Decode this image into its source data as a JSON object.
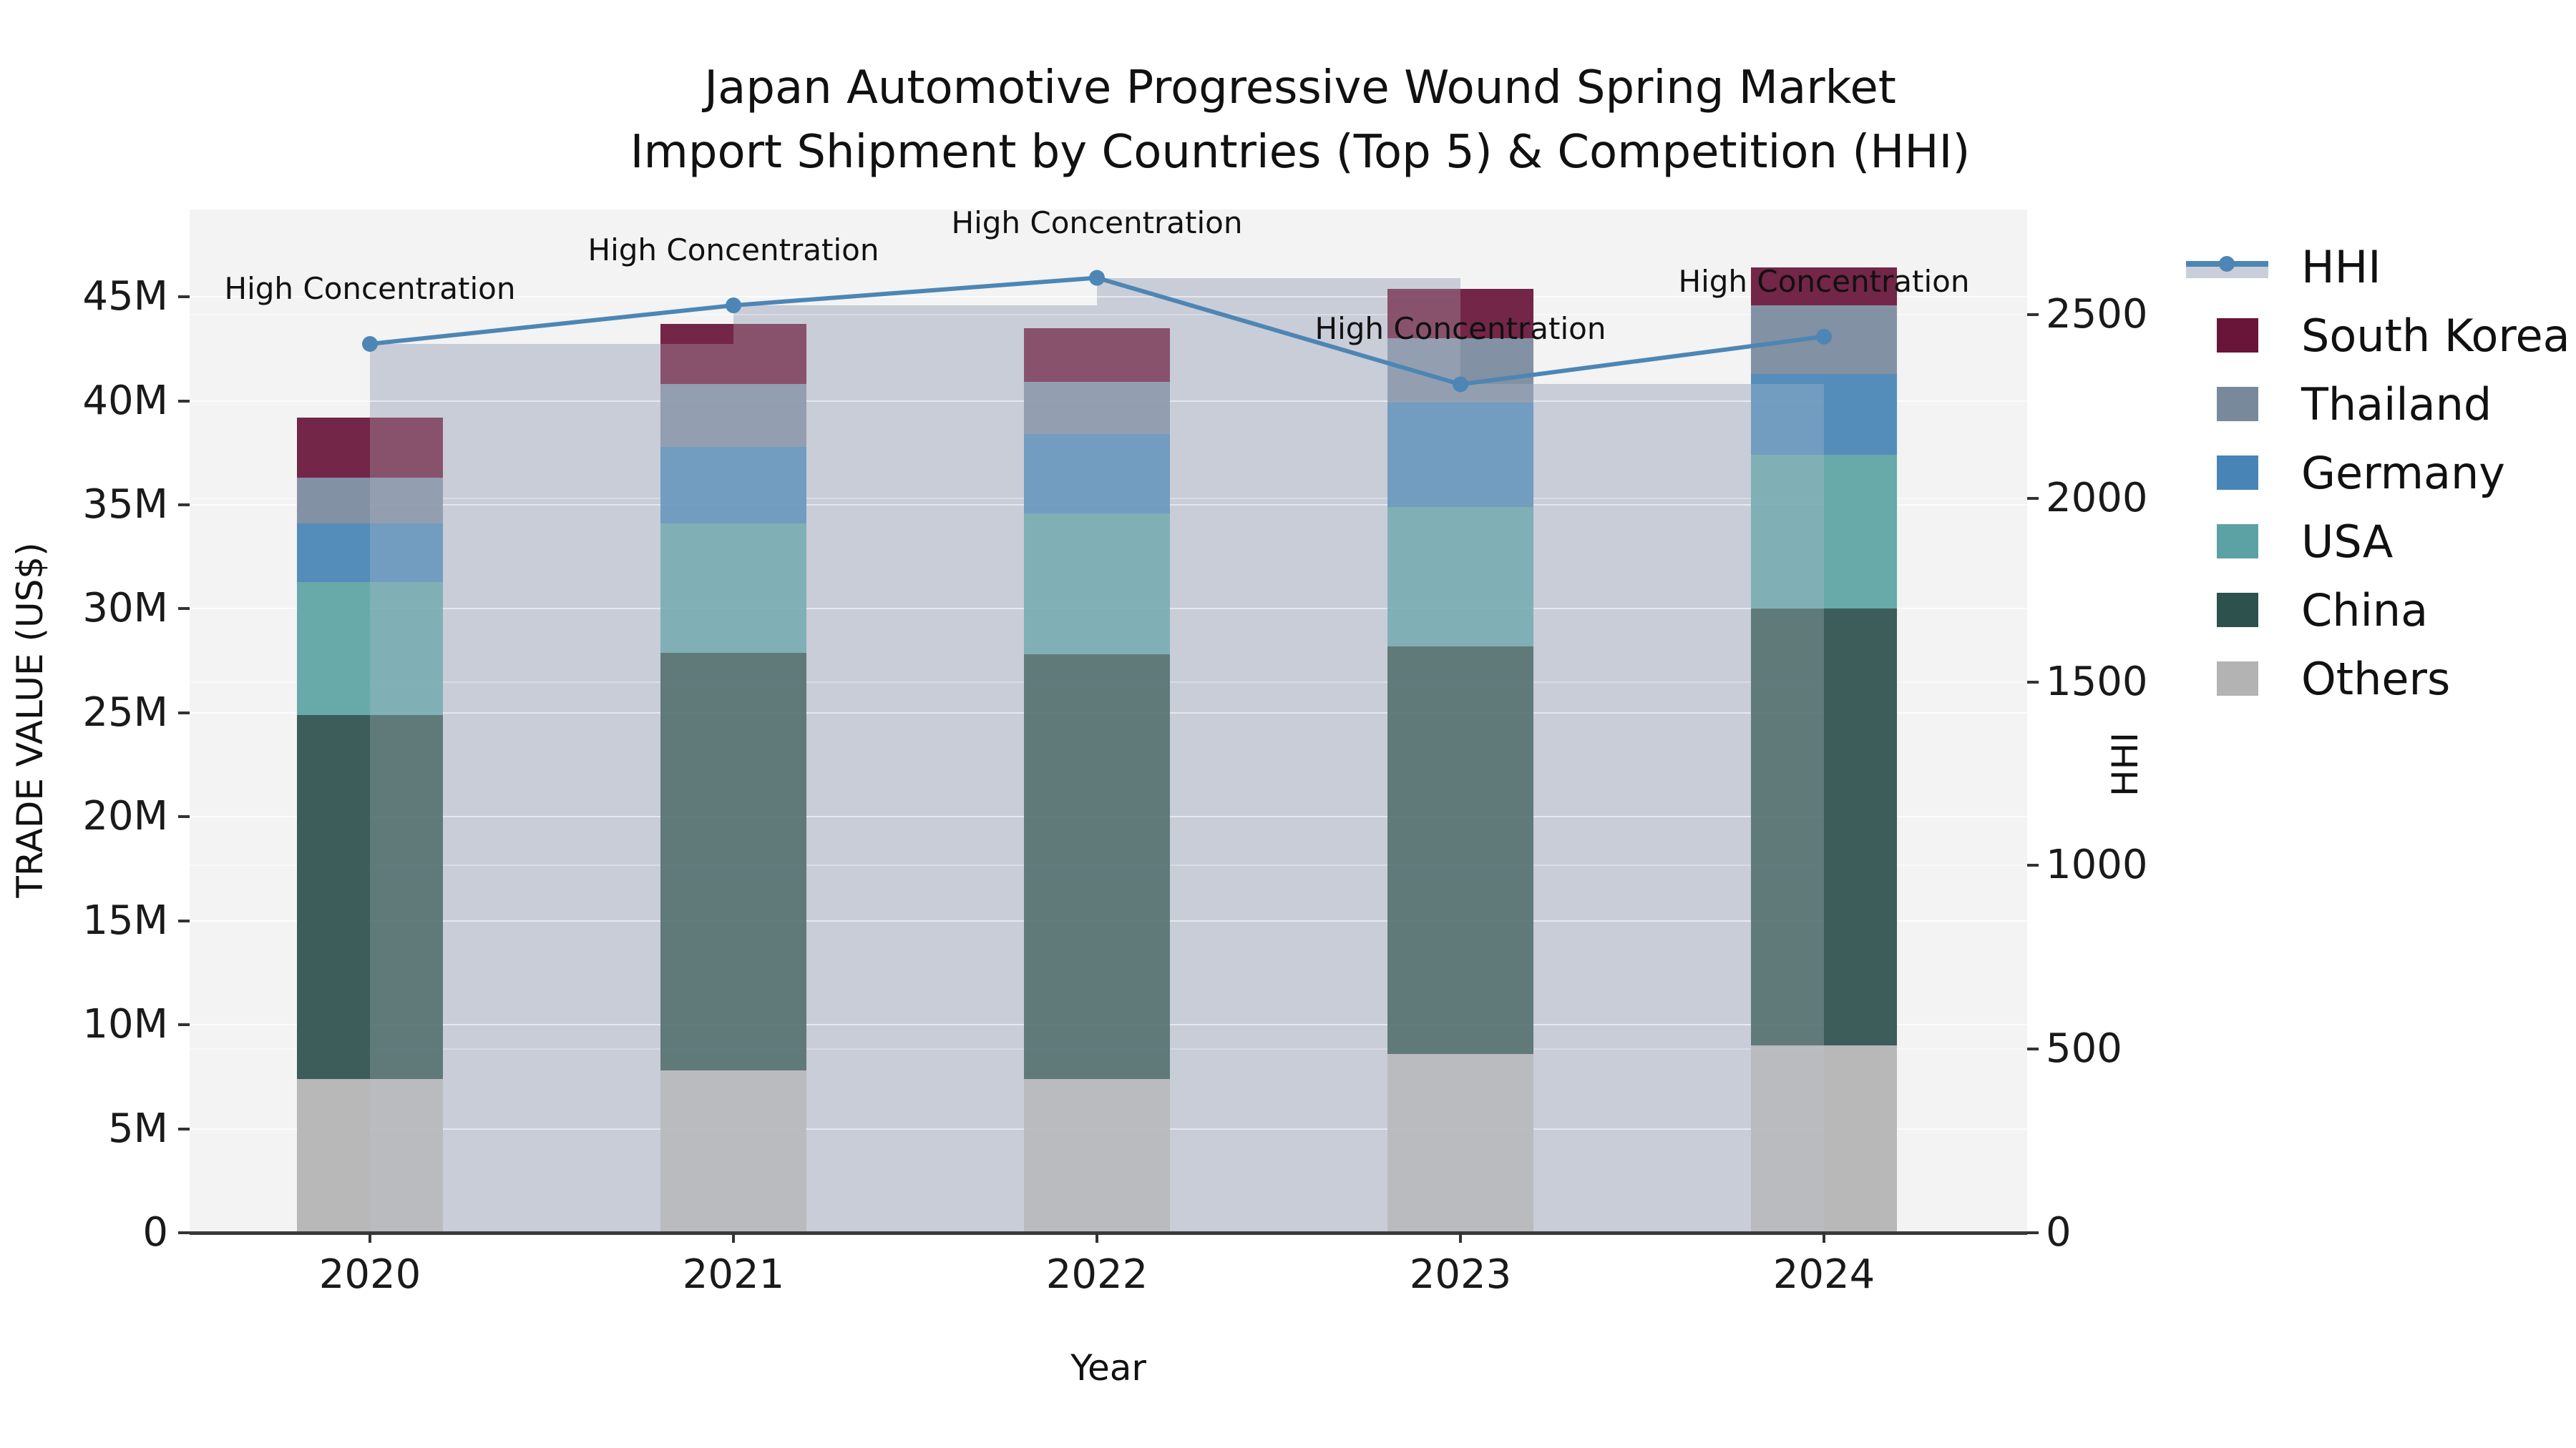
{
  "title": {
    "line1": "Japan Automotive Progressive Wound Spring Market",
    "line2": "Import Shipment by Countries (Top 5) & Competition (HHI)"
  },
  "axes": {
    "y_left": {
      "label": "TRADE VALUE (US$)",
      "ticks": [
        "0",
        "5M",
        "10M",
        "15M",
        "20M",
        "25M",
        "30M",
        "35M",
        "40M",
        "45M"
      ],
      "tick_values_m": [
        0,
        5,
        10,
        15,
        20,
        25,
        30,
        35,
        40,
        45
      ]
    },
    "y_right": {
      "label": "HHI",
      "ticks": [
        "0",
        "500",
        "1000",
        "1500",
        "2000",
        "2500"
      ],
      "tick_values": [
        0,
        500,
        1000,
        1500,
        2000,
        2500
      ]
    },
    "x": {
      "label": "Year",
      "categories": [
        "2020",
        "2021",
        "2022",
        "2023",
        "2024"
      ]
    }
  },
  "legend": {
    "items": [
      {
        "label": "HHI",
        "type": "line",
        "color": "#4d86b4"
      },
      {
        "label": "South Korea",
        "type": "patch",
        "color": "#681539"
      },
      {
        "label": "Thailand",
        "type": "patch",
        "color": "#78899c"
      },
      {
        "label": "Germany",
        "type": "patch",
        "color": "#4884b5"
      },
      {
        "label": "USA",
        "type": "patch",
        "color": "#5ca2a4"
      },
      {
        "label": "China",
        "type": "patch",
        "color": "#2d514c"
      },
      {
        "label": "Others",
        "type": "patch",
        "color": "#b3b3b3"
      }
    ]
  },
  "chart_data": {
    "type": "bar",
    "subtype": "stacked-bars-with-line-overlay",
    "title": "Japan Automotive Progressive Wound Spring Market Import Shipment by Countries (Top 5) & Competition (HHI)",
    "xlabel": "Year",
    "ylabel_left": "TRADE VALUE (US$)",
    "ylabel_right": "HHI",
    "categories": [
      "2020",
      "2021",
      "2022",
      "2023",
      "2024"
    ],
    "unit": "M US$",
    "series": [
      {
        "name": "Others",
        "color": "#b3b3b3",
        "values": [
          7.4,
          7.8,
          7.4,
          8.6,
          9.0
        ]
      },
      {
        "name": "China",
        "color": "#2d514c",
        "values": [
          17.5,
          20.1,
          20.4,
          19.6,
          21.0
        ]
      },
      {
        "name": "USA",
        "color": "#5ca2a4",
        "values": [
          6.4,
          6.2,
          6.8,
          6.7,
          7.4
        ]
      },
      {
        "name": "Germany",
        "color": "#4884b5",
        "values": [
          2.8,
          3.7,
          3.8,
          5.0,
          3.9
        ]
      },
      {
        "name": "Thailand",
        "color": "#78899c",
        "values": [
          2.2,
          3.0,
          2.5,
          3.1,
          3.3
        ]
      },
      {
        "name": "South Korea",
        "color": "#681539",
        "values": [
          2.9,
          2.9,
          2.6,
          2.4,
          1.8
        ]
      }
    ],
    "totals_m": [
      39.2,
      43.7,
      43.5,
      45.4,
      46.4
    ],
    "line_series": {
      "name": "HHI",
      "values": [
        2420,
        2525,
        2600,
        2310,
        2440
      ],
      "color": "#4d86b4",
      "band_color": "#c9ced9",
      "axis": "right"
    },
    "annotations": [
      "High Concentration",
      "High Concentration",
      "High Concentration",
      "High Concentration",
      "High Concentration"
    ],
    "ylim_left": [
      0,
      49.2
    ],
    "ylim_right": [
      0,
      2786
    ],
    "grid": true,
    "legend_position": "right"
  }
}
